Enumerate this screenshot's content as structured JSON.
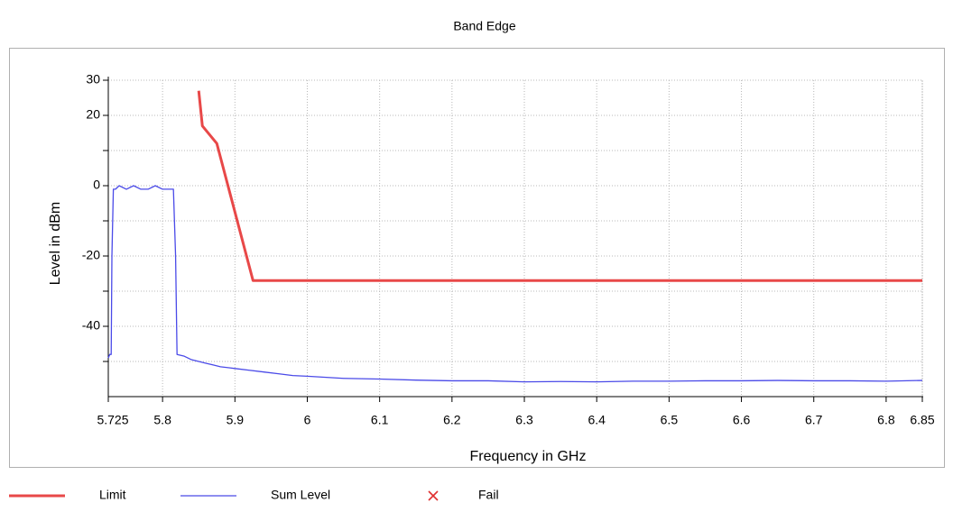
{
  "chart_data": {
    "type": "line",
    "title": "Band Edge",
    "xlabel": "Frequency in GHz",
    "ylabel": "Level in dBm",
    "xlim": [
      5.725,
      6.85
    ],
    "xticks": [
      5.725,
      5.8,
      5.9,
      6,
      6.1,
      6.2,
      6.3,
      6.4,
      6.5,
      6.6,
      6.7,
      6.8,
      6.85
    ],
    "ylim": [
      -60,
      30
    ],
    "yticks": [
      -40,
      -20,
      0,
      20,
      30
    ],
    "yminorticks": [
      -50,
      -30,
      -10,
      10
    ],
    "grid": true,
    "legend": "bottom",
    "series": [
      {
        "name": "Limit",
        "color": "#e84848",
        "x": [
          5.85,
          5.855,
          5.875,
          5.925,
          6.85
        ],
        "values": [
          27,
          17,
          12,
          -27,
          -27
        ]
      },
      {
        "name": "Sum Level",
        "color": "#4a4ae8",
        "x": [
          5.725,
          5.727,
          5.729,
          5.73,
          5.732,
          5.735,
          5.74,
          5.75,
          5.76,
          5.77,
          5.78,
          5.79,
          5.8,
          5.81,
          5.815,
          5.818,
          5.82,
          5.83,
          5.84,
          5.85,
          5.86,
          5.87,
          5.88,
          5.9,
          5.92,
          5.94,
          5.96,
          5.98,
          6.0,
          6.05,
          6.1,
          6.15,
          6.2,
          6.25,
          6.3,
          6.35,
          6.4,
          6.45,
          6.5,
          6.55,
          6.6,
          6.65,
          6.7,
          6.75,
          6.8,
          6.85
        ],
        "values": [
          -49,
          -48,
          -48,
          -20,
          -1,
          -1,
          0,
          -1,
          0,
          -1,
          -1,
          0,
          -1,
          -1,
          -1,
          -20,
          -48,
          -48.5,
          -49.5,
          -50,
          -50.5,
          -51,
          -51.5,
          -52,
          -52.5,
          -53,
          -53.5,
          -54,
          -54.2,
          -54.8,
          -55,
          -55.3,
          -55.5,
          -55.5,
          -55.8,
          -55.7,
          -55.8,
          -55.6,
          -55.6,
          -55.5,
          -55.5,
          -55.4,
          -55.5,
          -55.5,
          -55.6,
          -55.4
        ]
      },
      {
        "name": "Fail",
        "color": "#e03030",
        "marker": "x",
        "x": [],
        "values": []
      }
    ]
  }
}
